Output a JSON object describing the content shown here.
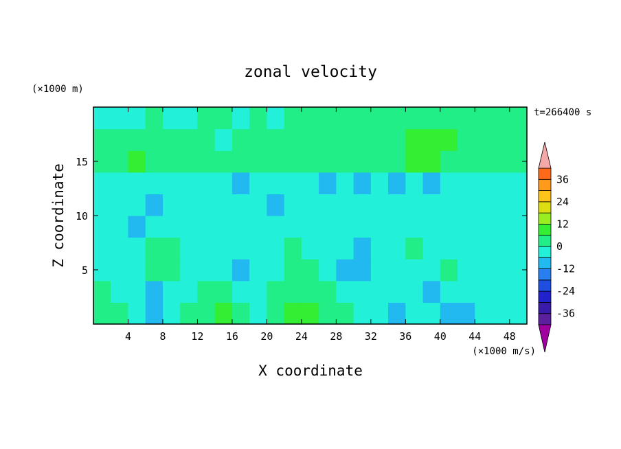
{
  "chart_data": {
    "type": "heatmap",
    "title": "zonal velocity",
    "xlabel": "X coordinate",
    "ylabel": "Z coordinate",
    "x_unit": "(×1000 m/s)",
    "y_unit": "(×1000 m)",
    "time_label": "t=266400 s",
    "xlim": [
      0,
      50
    ],
    "ylim": [
      0,
      20
    ],
    "x_ticks": [
      4,
      8,
      12,
      16,
      20,
      24,
      28,
      32,
      36,
      40,
      44,
      48
    ],
    "y_ticks": [
      5,
      10,
      15
    ],
    "grid": false,
    "colorbar": {
      "ticks": [
        36,
        24,
        12,
        0,
        -12,
        -24,
        -36
      ],
      "levels": [
        -42,
        -36,
        -30,
        -24,
        -18,
        -12,
        -6,
        0,
        6,
        12,
        18,
        24,
        30,
        36,
        42
      ],
      "colors": [
        "#5c1f9e",
        "#3a1aa8",
        "#2222cc",
        "#1f4fe0",
        "#2a7ff0",
        "#22b8f0",
        "#22f0d8",
        "#22ee88",
        "#33ee33",
        "#99ee22",
        "#dddd11",
        "#ffc41a",
        "#ff9a1a",
        "#ff6a1a",
        "#ff2a1a"
      ],
      "under_color": "#a000a0",
      "over_color": "#f4a8a8"
    },
    "bands": [
      {
        "z": [
          0,
          2
        ],
        "values": [
          3,
          1,
          -6,
          -8,
          -6,
          0,
          4,
          6,
          1,
          -3,
          2,
          6,
          7,
          4,
          0,
          -2,
          -6,
          -7,
          -5,
          -5,
          -8,
          -7,
          -5,
          -4,
          -6
        ]
      },
      {
        "z": [
          2,
          4
        ],
        "values": [
          1,
          -3,
          -5,
          -8,
          -6,
          -2,
          0,
          2,
          -2,
          -5,
          0,
          2,
          3,
          0,
          -2,
          -4,
          -5,
          -3,
          -5,
          -7,
          -6,
          -5,
          -4,
          -5,
          -5
        ]
      },
      {
        "z": [
          4,
          6
        ],
        "values": [
          -3,
          -5,
          -2,
          2,
          4,
          -1,
          -4,
          -6,
          -8,
          -6,
          -2,
          3,
          4,
          -4,
          -8,
          -7,
          -6,
          -6,
          -4,
          -1,
          1,
          -4,
          -6,
          -6,
          -5
        ]
      },
      {
        "z": [
          6,
          8
        ],
        "values": [
          -4,
          -6,
          -3,
          0,
          1,
          -2,
          -5,
          -6,
          -6,
          -3,
          -1,
          0,
          -4,
          -6,
          -4,
          -7,
          -6,
          -1,
          0,
          -2,
          -4,
          -5,
          -2,
          -2,
          -3
        ]
      },
      {
        "z": [
          8,
          10
        ],
        "values": [
          -6,
          -5,
          -7,
          -5,
          -4,
          -6,
          -5,
          -4,
          -5,
          -4,
          -3,
          -5,
          -6,
          -5,
          -2,
          -6,
          -5,
          -4,
          -1,
          -4,
          -2,
          -1,
          -3,
          -2,
          -2
        ]
      },
      {
        "z": [
          10,
          12
        ],
        "values": [
          -5,
          -6,
          -6,
          -7,
          -6,
          -5,
          -6,
          -6,
          -5,
          -6,
          -7,
          -6,
          -5,
          -6,
          -6,
          -5,
          -6,
          -5,
          -6,
          -5,
          -5,
          -6,
          -6,
          -5,
          -5
        ]
      },
      {
        "z": [
          12,
          14
        ],
        "values": [
          -4,
          -5,
          -4,
          -3,
          -5,
          -4,
          -6,
          -5,
          -7,
          -6,
          -5,
          -4,
          -6,
          -7,
          -6,
          -7,
          -6,
          -7,
          -6,
          -7,
          -6,
          -5,
          -6,
          -5,
          -4
        ]
      },
      {
        "z": [
          14,
          16
        ],
        "values": [
          4,
          5,
          6,
          5,
          4,
          5,
          4,
          3,
          4,
          5,
          3,
          2,
          3,
          4,
          3,
          2,
          4,
          5,
          6,
          6,
          4,
          3,
          2,
          3,
          2
        ]
      },
      {
        "z": [
          16,
          18
        ],
        "values": [
          2,
          1,
          2,
          3,
          1,
          2,
          0,
          -1,
          1,
          2,
          3,
          2,
          1,
          3,
          4,
          2,
          3,
          5,
          6,
          7,
          6,
          4,
          3,
          1,
          2
        ]
      },
      {
        "z": [
          18,
          20
        ],
        "values": [
          -3,
          -2,
          -1,
          0,
          -2,
          -1,
          0,
          1,
          -1,
          0,
          -2,
          0,
          1,
          2,
          0,
          1,
          2,
          1,
          0,
          1,
          0,
          1,
          2,
          0,
          1
        ]
      }
    ]
  }
}
